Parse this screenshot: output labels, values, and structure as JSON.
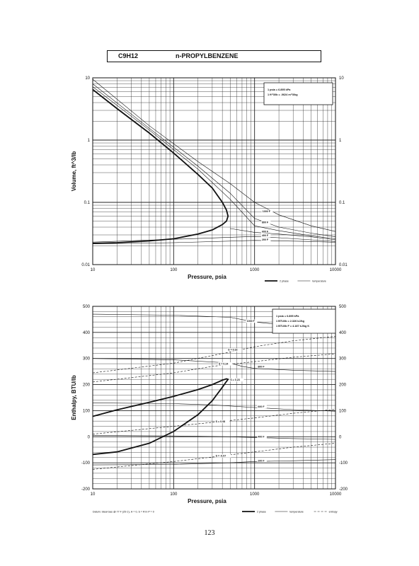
{
  "header": {
    "formula": "C9H12",
    "compound": "n-PROPYLBENZENE"
  },
  "page_number": "123",
  "chart_data": [
    {
      "type": "line",
      "id": "volume",
      "xlabel": "Pressure,  psia",
      "ylabel": "Volume, ft^3/lb",
      "x_scale": "log",
      "y_scale": "log",
      "xlim": [
        10,
        10000
      ],
      "ylim": [
        0.01,
        10
      ],
      "grid": true,
      "x_ticks": [
        "10",
        "100",
        "1000",
        "10000"
      ],
      "y_ticks": [
        "0.01",
        "0.1",
        "1",
        "10"
      ],
      "right_ticks": [
        "0.01",
        "0.1",
        "1",
        "10"
      ],
      "box": {
        "lines": [
          "1 psia  =  6.895 kPa",
          "1 ft^3/lb  =  .0624 m^3/kg"
        ]
      },
      "legend": [
        {
          "label": "2 phase",
          "style": "thick"
        },
        {
          "label": "temperature",
          "style": "thin"
        }
      ],
      "labels": [
        {
          "text": "1000 F",
          "x": 1250,
          "y": 0.069
        },
        {
          "text": "800 F",
          "x": 1230,
          "y": 0.046
        },
        {
          "text": "600 F",
          "x": 1230,
          "y": 0.033
        },
        {
          "text": "400 F",
          "x": 1230,
          "y": 0.0283
        },
        {
          "text": "200 F",
          "x": 1230,
          "y": 0.0245
        }
      ],
      "series": [
        {
          "style": "thick",
          "x": [
            10,
            20,
            50,
            100,
            200,
            300,
            400,
            450,
            470,
            450,
            400,
            300,
            200,
            100,
            50,
            20,
            10
          ],
          "y": [
            6.5,
            3.2,
            1.3,
            0.62,
            0.28,
            0.17,
            0.1,
            0.075,
            0.06,
            0.05,
            0.044,
            0.036,
            0.031,
            0.026,
            0.024,
            0.0225,
            0.022
          ]
        },
        {
          "style": "thin",
          "x": [
            10,
            50,
            200,
            500,
            1000,
            2000,
            5000,
            10000
          ],
          "y": [
            9.5,
            1.7,
            0.45,
            0.2,
            0.1,
            0.063,
            0.042,
            0.034
          ]
        },
        {
          "style": "thin",
          "x": [
            10,
            50,
            200,
            500,
            1000,
            2000,
            5000,
            10000
          ],
          "y": [
            8.0,
            1.55,
            0.38,
            0.14,
            0.055,
            0.04,
            0.032,
            0.028
          ]
        },
        {
          "style": "thin",
          "x": [
            10,
            50,
            200,
            500,
            1000,
            2000,
            5000,
            10000
          ],
          "y": [
            7.2,
            1.45,
            0.34,
            0.112,
            0.042,
            0.035,
            0.029,
            0.026
          ]
        },
        {
          "style": "thin",
          "x": [
            500,
            1000,
            2000,
            5000,
            10000
          ],
          "y": [
            0.038,
            0.033,
            0.031,
            0.028,
            0.025
          ]
        },
        {
          "style": "thin",
          "x": [
            10,
            100,
            1000,
            2000,
            5000,
            10000
          ],
          "y": [
            0.023,
            0.0255,
            0.0283,
            0.027,
            0.025,
            0.0235
          ]
        },
        {
          "style": "thin",
          "x": [
            10,
            100,
            1000,
            5000,
            10000
          ],
          "y": [
            0.0215,
            0.0225,
            0.0245,
            0.0235,
            0.0228
          ]
        }
      ]
    },
    {
      "type": "line",
      "id": "enthalpy",
      "xlabel": "Pressure,  psia",
      "ylabel": "Enthalpy, BTU/lb",
      "x_scale": "log",
      "y_scale": "linear",
      "xlim": [
        10,
        10000
      ],
      "ylim": [
        -200,
        500
      ],
      "grid": true,
      "x_ticks": [
        "10",
        "100",
        "1000",
        "10000"
      ],
      "y_ticks": [
        "-200",
        "-100",
        "0",
        "100",
        "200",
        "300",
        "400",
        "500"
      ],
      "right_ticks": [
        "-200",
        "-100",
        "0",
        "100",
        "200",
        "300",
        "400",
        "500"
      ],
      "box": {
        "lines": [
          "1 psia  =  6.895 kPa",
          "1 BTU/lb  =  2.326 kJ/kg",
          "1 BTU/lb F  =  4.187 kJ/kg K"
        ]
      },
      "footnote": "Datum: Ideal Gas @ 77 F (25 C),  H = 0,  S = R ln P = 0",
      "legend": [
        {
          "label": "2 phase",
          "style": "thick"
        },
        {
          "label": "temperature",
          "style": "thin"
        },
        {
          "label": "entropy",
          "style": "dashed"
        }
      ],
      "labels": [
        {
          "text": "1000 F",
          "x": 800,
          "y": 440
        },
        {
          "text": "800 F",
          "x": 1100,
          "y": 265
        },
        {
          "text": "600 F",
          "x": 1100,
          "y": 112
        },
        {
          "text": "400 F",
          "x": 1100,
          "y": -3
        },
        {
          "text": "200 F",
          "x": 1100,
          "y": -95
        },
        {
          "text": "S = 0.32",
          "x": 470,
          "y": 330
        },
        {
          "text": "S = 0.24",
          "x": 360,
          "y": 276
        },
        {
          "text": "S = 0.23",
          "x": 500,
          "y": 215
        },
        {
          "text": "S = 0.08",
          "x": 330,
          "y": 55
        },
        {
          "text": "S = -0.07",
          "x": 330,
          "y": -77
        }
      ],
      "series": [
        {
          "style": "thick",
          "x": [
            10,
            20,
            50,
            100,
            200,
            300,
            400,
            450,
            470,
            440,
            400,
            300,
            200,
            100,
            50,
            20,
            10
          ],
          "y": [
            78,
            103,
            132,
            155,
            181,
            200,
            217,
            222,
            220,
            208,
            190,
            138,
            85,
            20,
            -25,
            -58,
            -68
          ]
        },
        {
          "style": "thin",
          "x": [
            10,
            100,
            500,
            1000,
            3000,
            10000
          ],
          "y": [
            470,
            466,
            458,
            440,
            425,
            418
          ]
        },
        {
          "style": "thin",
          "x": [
            10,
            100,
            500,
            700,
            1000,
            3000,
            10000
          ],
          "y": [
            300,
            295,
            283,
            270,
            262,
            255,
            250
          ]
        },
        {
          "style": "thin",
          "x": [
            10,
            100,
            300,
            1000,
            3000,
            10000
          ],
          "y": [
            130,
            127,
            122,
            112,
            104,
            98
          ]
        },
        {
          "style": "thin",
          "x": [
            10,
            100,
            500,
            1000,
            3000,
            10000
          ],
          "y": [
            5,
            3,
            0,
            -3,
            -7,
            -10
          ]
        },
        {
          "style": "thin",
          "x": [
            10,
            100,
            500,
            1000,
            3000,
            10000
          ],
          "y": [
            -108,
            -106,
            -100,
            -95,
            -92,
            -88
          ]
        },
        {
          "style": "dashed",
          "x": [
            10,
            100,
            500,
            1000,
            3000,
            10000
          ],
          "y": [
            245,
            282,
            325,
            345,
            368,
            385
          ]
        },
        {
          "style": "dashed",
          "x": [
            10,
            100,
            300,
            1000,
            3000,
            10000
          ],
          "y": [
            210,
            245,
            270,
            288,
            305,
            318
          ]
        },
        {
          "style": "dashed",
          "x": [
            10,
            100,
            300,
            1000,
            3000,
            10000
          ],
          "y": [
            10,
            40,
            55,
            72,
            90,
            105
          ]
        },
        {
          "style": "dashed",
          "x": [
            10,
            100,
            300,
            1000,
            3000,
            10000
          ],
          "y": [
            -125,
            -95,
            -78,
            -58,
            -40,
            -25
          ]
        }
      ]
    }
  ]
}
